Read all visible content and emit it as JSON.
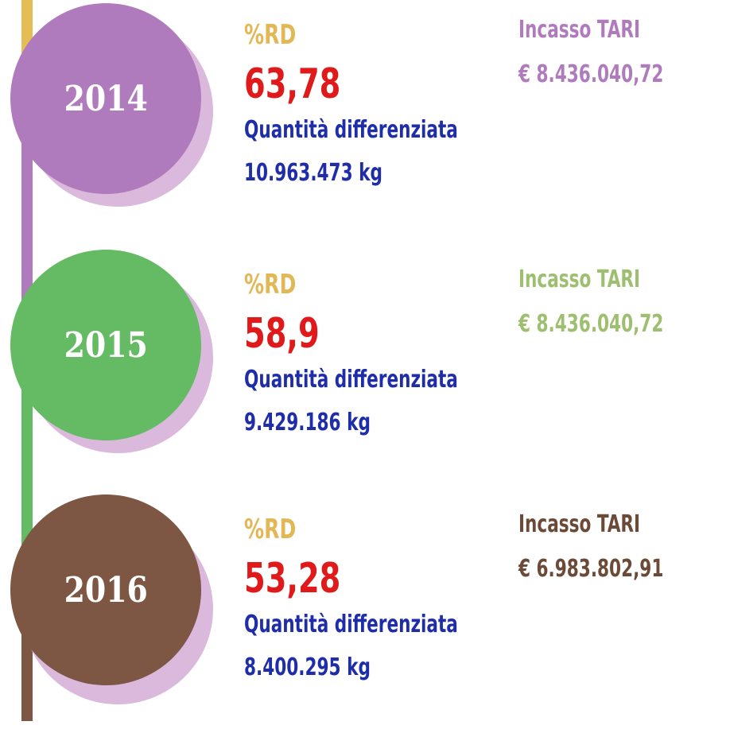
{
  "colors": {
    "timeline_top": "#e5bd55",
    "rd_label": "#e2b857",
    "rd_value": "#e01a1a",
    "quantity": "#1f2ea8",
    "shadow": "#dab9dc"
  },
  "entries": [
    {
      "year": "2014",
      "circle_color": "#b07bbd",
      "rd_label": "%RD",
      "rd_value": "63,78",
      "quantity_label": "Quantità differenziata",
      "quantity_value": "10.963.473 kg",
      "tari_label": "Incasso TARI",
      "tari_value": "€ 8.436.040,72",
      "tari_color": "#b07bbd"
    },
    {
      "year": "2015",
      "circle_color": "#64bb63",
      "rd_label": "%RD",
      "rd_value": "58,9",
      "quantity_label": "Quantità differenziata",
      "quantity_value": "9.429.186 kg",
      "tari_label": "Incasso TARI",
      "tari_value": "€ 8.436.040,72",
      "tari_color": "#9dbf6f"
    },
    {
      "year": "2016",
      "circle_color": "#7d5743",
      "rd_label": "%RD",
      "rd_value": "53,28",
      "quantity_label": "Quantità differenziata",
      "quantity_value": "8.400.295 kg",
      "tari_label": "Incasso TARI",
      "tari_value": "€ 6.983.802,91",
      "tari_color": "#6b4a38"
    }
  ]
}
